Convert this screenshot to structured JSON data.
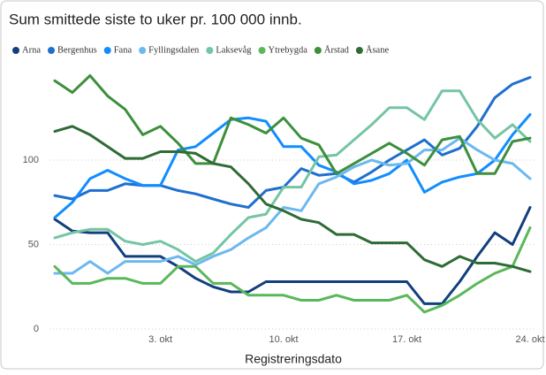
{
  "chart_data": {
    "type": "line",
    "title": "Sum smittede siste to uker pr. 100 000 innb.",
    "xlabel": "Registreringsdato",
    "categories": [
      null,
      null,
      null,
      null,
      null,
      null,
      "3. okt",
      null,
      null,
      null,
      null,
      null,
      null,
      "10. okt",
      null,
      null,
      null,
      null,
      null,
      null,
      "17. okt",
      null,
      null,
      null,
      null,
      null,
      null,
      "24. okt"
    ],
    "ylim": [
      0,
      155
    ],
    "yticks": [
      0,
      50,
      100
    ],
    "grid": true,
    "legend": "top",
    "series": [
      {
        "name": "Arna",
        "color": "#123f7c",
        "values": [
          65,
          58,
          57,
          57,
          43,
          43,
          43,
          37,
          30,
          25,
          22,
          22,
          28,
          28,
          28,
          28,
          28,
          28,
          28,
          28,
          28,
          15,
          15,
          28,
          43,
          57,
          50,
          72
        ]
      },
      {
        "name": "Bergenhus",
        "color": "#1f6fcf",
        "values": [
          79,
          77,
          82,
          82,
          86,
          85,
          85,
          82,
          80,
          77,
          74,
          72,
          82,
          84,
          95,
          91,
          92,
          87,
          93,
          100,
          106,
          112,
          103,
          107,
          120,
          137,
          145,
          149
        ]
      },
      {
        "name": "Fana",
        "color": "#118dff",
        "values": [
          66,
          75,
          89,
          94,
          89,
          85,
          85,
          106,
          108,
          116,
          124,
          125,
          123,
          108,
          108,
          97,
          93,
          86,
          88,
          92,
          100,
          81,
          87,
          90,
          92,
          100,
          115,
          127
        ]
      },
      {
        "name": "Fyllingsdalen",
        "color": "#6cb8f0",
        "values": [
          33,
          33,
          40,
          33,
          40,
          40,
          40,
          43,
          38,
          43,
          47,
          54,
          60,
          72,
          70,
          86,
          90,
          96,
          100,
          97,
          98,
          106,
          106,
          113,
          106,
          100,
          98,
          89
        ]
      },
      {
        "name": "Laksevåg",
        "color": "#74c5a4",
        "values": [
          54,
          57,
          59,
          59,
          52,
          50,
          52,
          47,
          40,
          45,
          56,
          66,
          68,
          84,
          84,
          102,
          103,
          112,
          121,
          131,
          131,
          124,
          141,
          141,
          124,
          113,
          121,
          111
        ]
      },
      {
        "name": "Ytrebygda",
        "color": "#5ab85a",
        "values": [
          37,
          27,
          27,
          30,
          30,
          27,
          27,
          37,
          37,
          27,
          27,
          20,
          20,
          20,
          17,
          17,
          20,
          17,
          17,
          17,
          20,
          10,
          14,
          20,
          27,
          33,
          37,
          60
        ]
      },
      {
        "name": "Årstad",
        "color": "#3d8f3d",
        "values": [
          147,
          140,
          150,
          138,
          130,
          115,
          120,
          110,
          98,
          98,
          125,
          121,
          116,
          125,
          113,
          109,
          92,
          98,
          104,
          110,
          104,
          97,
          112,
          114,
          92,
          92,
          111,
          113
        ]
      },
      {
        "name": "Åsane",
        "color": "#2e6b35",
        "values": [
          117,
          120,
          115,
          108,
          101,
          101,
          105,
          105,
          104,
          98,
          96,
          86,
          74,
          70,
          65,
          63,
          56,
          56,
          51,
          51,
          51,
          41,
          37,
          43,
          39,
          39,
          37,
          34
        ]
      }
    ]
  }
}
